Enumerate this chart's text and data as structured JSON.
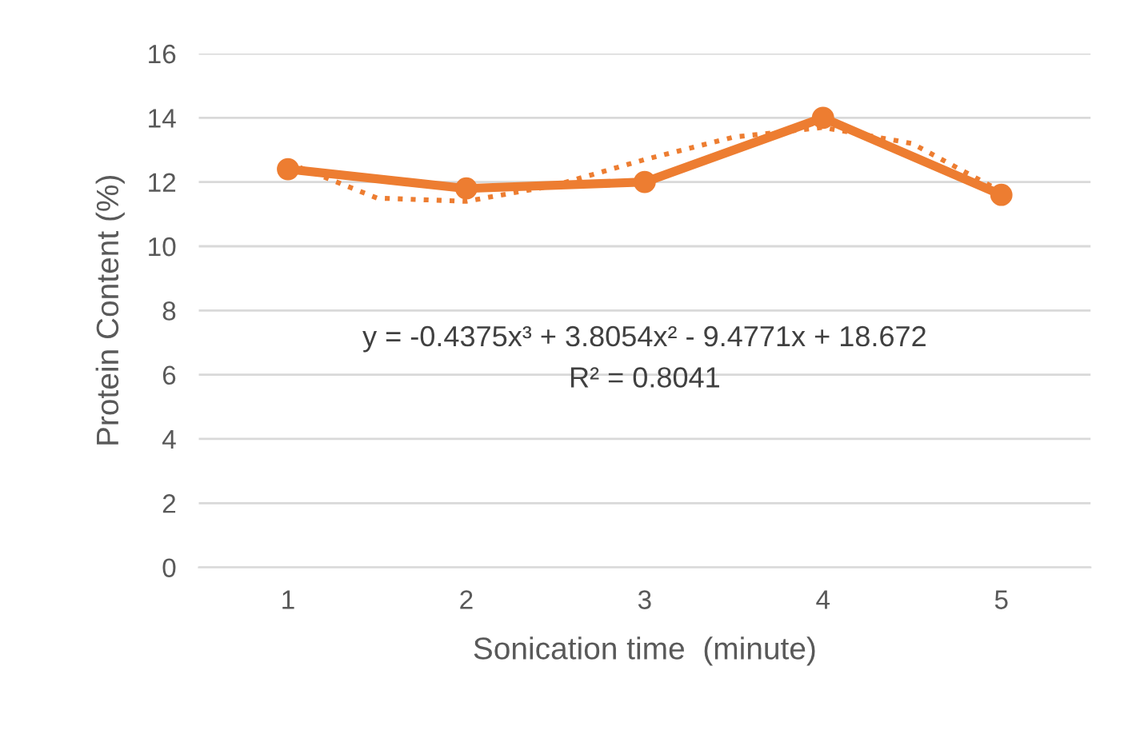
{
  "chart_data": {
    "type": "line",
    "xlabel": "Sonication time  (minute)",
    "ylabel": "Protein Content (%)",
    "x": [
      1,
      2,
      3,
      4,
      5
    ],
    "series": [
      {
        "color": "#ed7d31",
        "values": [
          12.4,
          11.8,
          12.0,
          14.0,
          11.6
        ],
        "marker": "circle",
        "line_style": "solid"
      },
      {
        "type": "line",
        "color": "#ed7d31",
        "x": [
          1,
          1.5,
          2,
          2.5,
          3,
          3.5,
          4,
          4.5,
          5
        ],
        "values": [
          12.6,
          11.5,
          11.4,
          11.9,
          12.7,
          13.4,
          13.7,
          13.2,
          11.7
        ],
        "marker": "none",
        "line_style": "dotted"
      }
    ],
    "xlim": [
      0.5,
      5.5
    ],
    "xticks": [
      1,
      2,
      3,
      4,
      5
    ],
    "ylim": [
      0,
      16
    ],
    "yticks": [
      0,
      2,
      4,
      6,
      8,
      10,
      12,
      14,
      16
    ],
    "grid": "y",
    "legend": false,
    "annotations": [
      "y = -0.4375x³ + 3.8054x² - 9.4771x + 18.672",
      "R² = 0.8041"
    ]
  }
}
